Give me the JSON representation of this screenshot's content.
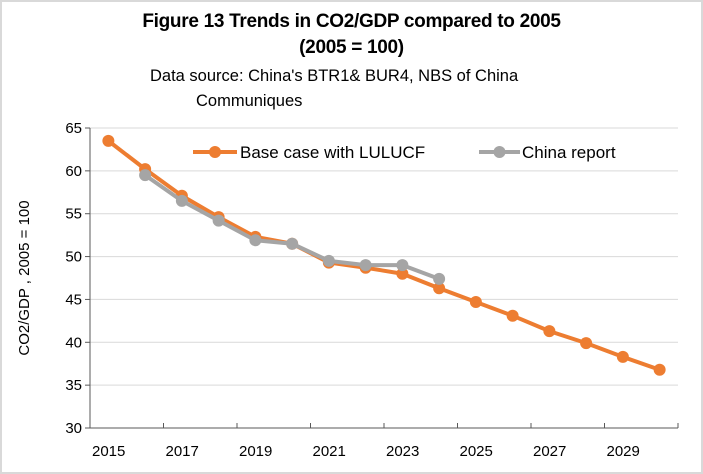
{
  "chart_data": {
    "type": "line",
    "title": "Figure 13  Trends in CO2/GDP compared to 2005",
    "title_line2": "(2005 = 100)",
    "subtitle": "Data source: China's BTR1& BUR4, NBS of China",
    "subtitle_line2": "Communiques",
    "xlabel": "",
    "ylabel": "CO2/GDP ,   2005 = 100",
    "ylim": [
      30,
      65
    ],
    "yticks": [
      30,
      35,
      40,
      45,
      50,
      55,
      60,
      65
    ],
    "x": [
      2015,
      2016,
      2017,
      2018,
      2019,
      2020,
      2021,
      2022,
      2023,
      2024,
      2025,
      2026,
      2027,
      2028,
      2029,
      2030
    ],
    "xtick_labels": [
      "2015",
      "2017",
      "2019",
      "2021",
      "2023",
      "2025",
      "2027",
      "2029"
    ],
    "grid": "horizontal",
    "legend_position": "top-right",
    "series": [
      {
        "name": "Base case with LULUCF",
        "color": "#ed7d31",
        "values": [
          63.5,
          60.2,
          57.1,
          54.6,
          52.3,
          51.5,
          49.3,
          48.7,
          48.0,
          46.3,
          44.7,
          43.1,
          41.3,
          39.9,
          38.3,
          36.8
        ]
      },
      {
        "name": "China report",
        "color": "#a5a5a5",
        "values": [
          null,
          59.5,
          56.5,
          54.2,
          51.9,
          51.5,
          49.5,
          49.0,
          49.0,
          47.4,
          null,
          null,
          null,
          null,
          null,
          null
        ]
      }
    ]
  }
}
